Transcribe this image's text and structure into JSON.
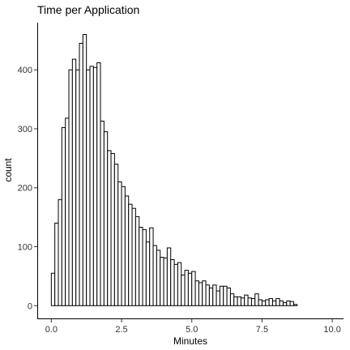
{
  "chart_data": {
    "type": "bar",
    "title": "Time per Application",
    "xlabel": "Minutes",
    "ylabel": "count",
    "xlim": [
      -0.5,
      10.4
    ],
    "ylim": [
      -23,
      480
    ],
    "x_ticks": [
      0.0,
      2.5,
      5.0,
      7.5,
      10.0
    ],
    "x_tick_labels": [
      "0.0",
      "2.5",
      "5.0",
      "7.5",
      "10.0"
    ],
    "y_ticks": [
      0,
      100,
      200,
      300,
      400
    ],
    "y_tick_labels": [
      "0",
      "100",
      "200",
      "300",
      "400"
    ],
    "grid": false,
    "bin_width": 0.125,
    "bin_start": 0.0,
    "values": [
      55,
      140,
      180,
      302,
      318,
      400,
      418,
      400,
      445,
      460,
      400,
      406,
      404,
      412,
      313,
      295,
      263,
      258,
      240,
      210,
      202,
      186,
      172,
      165,
      151,
      133,
      129,
      108,
      132,
      102,
      94,
      82,
      81,
      98,
      78,
      70,
      73,
      52,
      60,
      55,
      58,
      42,
      39,
      42,
      35,
      30,
      35,
      25,
      33,
      33,
      30,
      20,
      15,
      15,
      13,
      18,
      13,
      12,
      20,
      10,
      8,
      10,
      12,
      8,
      12,
      8,
      5,
      8,
      7,
      2
    ]
  }
}
